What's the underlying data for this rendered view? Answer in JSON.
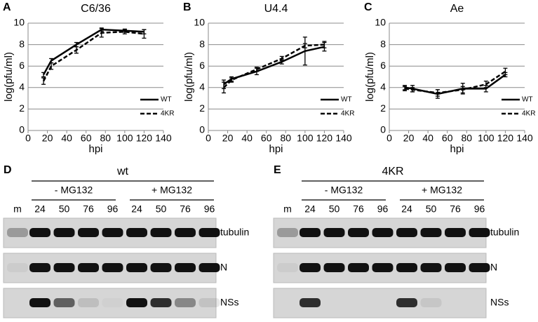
{
  "chart_data": [
    {
      "type": "line",
      "panel": "A",
      "title": "C6/36",
      "xlabel": "hpi",
      "ylabel": "log(pfu/ml)",
      "x": [
        16,
        24,
        50,
        76,
        100,
        120
      ],
      "series": [
        {
          "name": "WT",
          "color": "#000000",
          "dash": false,
          "values": [
            5.2,
            6.5,
            8.0,
            9.4,
            9.3,
            9.2
          ],
          "errors": [
            0.2,
            0.2,
            0.2,
            0.15,
            0.15,
            0.2
          ]
        },
        {
          "name": "4KR",
          "color": "#000000",
          "dash": true,
          "values": [
            4.6,
            6.0,
            7.5,
            9.1,
            9.2,
            9.0
          ],
          "errors": [
            0.3,
            0.3,
            0.3,
            0.4,
            0.2,
            0.4
          ]
        }
      ],
      "xlim": [
        0,
        140
      ],
      "xticks": [
        0,
        20,
        40,
        60,
        80,
        100,
        120,
        140
      ],
      "ylim": [
        0,
        10
      ],
      "yticks": [
        0,
        2,
        4,
        6,
        8,
        10
      ],
      "grid": true,
      "legend": "lower right"
    },
    {
      "type": "line",
      "panel": "B",
      "title": "U4.4",
      "xlabel": "hpi",
      "ylabel": "log(pfu/ml)",
      "x": [
        16,
        24,
        50,
        76,
        100,
        120
      ],
      "series": [
        {
          "name": "WT",
          "color": "#000000",
          "dash": false,
          "values": [
            4.3,
            4.8,
            5.5,
            6.4,
            7.4,
            7.8
          ],
          "errors": [
            0.4,
            0.2,
            0.3,
            0.2,
            1.3,
            0.4
          ]
        },
        {
          "name": "4KR",
          "color": "#000000",
          "dash": true,
          "values": [
            4.0,
            4.7,
            5.7,
            6.7,
            7.9,
            8.0
          ],
          "errors": [
            0.5,
            0.2,
            0.2,
            0.2,
            0.2,
            0.3
          ]
        }
      ],
      "xlim": [
        0,
        140
      ],
      "xticks": [
        0,
        20,
        40,
        60,
        80,
        100,
        120,
        140
      ],
      "ylim": [
        0,
        10
      ],
      "yticks": [
        0,
        2,
        4,
        6,
        8,
        10
      ],
      "grid": true,
      "legend": "lower right"
    },
    {
      "type": "line",
      "panel": "C",
      "title": "Ae",
      "xlabel": "hpi",
      "ylabel": "log(pfu/ml)",
      "x": [
        16,
        24,
        50,
        76,
        100,
        120
      ],
      "series": [
        {
          "name": "WT",
          "color": "#000000",
          "dash": false,
          "values": [
            4.0,
            3.9,
            3.4,
            3.9,
            3.9,
            5.2
          ],
          "errors": [
            0.2,
            0.3,
            0.4,
            0.5,
            0.3,
            0.2
          ]
        },
        {
          "name": "4KR",
          "color": "#000000",
          "dash": true,
          "values": [
            3.9,
            3.8,
            3.5,
            3.8,
            4.3,
            5.5
          ],
          "errors": [
            0.2,
            0.2,
            0.3,
            0.3,
            0.3,
            0.3
          ]
        }
      ],
      "xlim": [
        0,
        140
      ],
      "xticks": [
        0,
        20,
        40,
        60,
        80,
        100,
        120,
        140
      ],
      "ylim": [
        0,
        10
      ],
      "yticks": [
        0,
        2,
        4,
        6,
        8,
        10
      ],
      "grid": true,
      "legend": "lower right"
    }
  ],
  "blots": [
    {
      "panel": "D",
      "title": "wt",
      "groups": [
        "- MG132",
        "+ MG132"
      ],
      "lanes": [
        "m",
        "24",
        "50",
        "76",
        "96",
        "24",
        "50",
        "76",
        "96"
      ],
      "rows": [
        "tubulin",
        "N",
        "NSs"
      ]
    },
    {
      "panel": "E",
      "title": "4KR",
      "groups": [
        "- MG132",
        "+ MG132"
      ],
      "lanes": [
        "m",
        "24",
        "50",
        "76",
        "96",
        "24",
        "50",
        "76",
        "96"
      ],
      "rows": [
        "tubulin",
        "N",
        "NSs"
      ]
    }
  ]
}
